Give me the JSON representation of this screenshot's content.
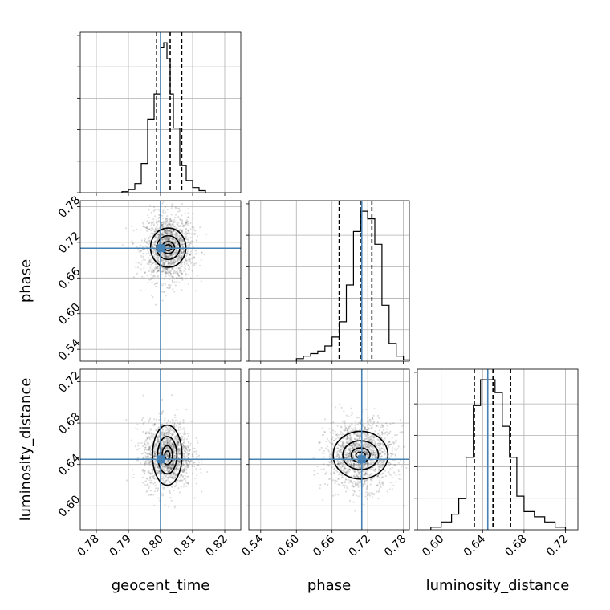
{
  "chart_data": {
    "type": "scatter",
    "subtype": "corner-plot",
    "grid": true,
    "parameters": [
      {
        "name": "geocent_time",
        "range": [
          0.775,
          0.825
        ],
        "ticks": [
          0.78,
          0.79,
          0.8,
          0.81,
          0.82
        ],
        "tick_labels": [
          "0.78",
          "0.79",
          "0.80",
          "0.81",
          "0.82"
        ],
        "truth": 0.8,
        "quantiles": [
          0.7988,
          0.803,
          0.8066
        ],
        "mean": 0.8024,
        "sd": 0.0028
      },
      {
        "name": "phase",
        "range": [
          0.52,
          0.79
        ],
        "ticks": [
          0.54,
          0.6,
          0.66,
          0.72,
          0.78
        ],
        "tick_labels": [
          "0.54",
          "0.60",
          "0.66",
          "0.72",
          "0.78"
        ],
        "truth": 0.71,
        "quantiles": [
          0.672,
          0.709,
          0.727
        ],
        "mean": 0.708,
        "sd": 0.021
      },
      {
        "name": "luminosity_distance",
        "range": [
          0.577,
          0.732
        ],
        "ticks": [
          0.6,
          0.64,
          0.68,
          0.72
        ],
        "tick_labels": [
          "0.60",
          "0.64",
          "0.68",
          "0.72"
        ],
        "truth": 0.645,
        "quantiles": [
          0.632,
          0.65,
          0.667
        ],
        "mean": 0.65,
        "sd": 0.012
      }
    ],
    "histograms": [
      {
        "parameter": "geocent_time",
        "bin_edges": [
          0.788,
          0.79,
          0.792,
          0.794,
          0.796,
          0.798,
          0.8,
          0.801,
          0.802,
          0.803,
          0.804,
          0.806,
          0.808,
          0.81,
          0.812,
          0.814
        ],
        "counts": [
          1,
          3,
          9,
          29,
          73,
          98,
          144,
          149,
          133,
          98,
          64,
          27,
          12,
          5,
          2
        ]
      },
      {
        "parameter": "phase",
        "bin_edges": [
          0.6,
          0.612,
          0.624,
          0.636,
          0.648,
          0.66,
          0.672,
          0.684,
          0.696,
          0.708,
          0.72,
          0.732,
          0.744,
          0.756,
          0.768,
          0.78,
          0.79
        ],
        "counts": [
          2,
          4,
          6,
          8,
          12,
          19,
          31,
          60,
          102,
          118,
          112,
          92,
          44,
          14,
          4,
          1
        ]
      },
      {
        "parameter": "luminosity_distance",
        "bin_edges": [
          0.59,
          0.6,
          0.61,
          0.617,
          0.624,
          0.631,
          0.638,
          0.645,
          0.652,
          0.659,
          0.666,
          0.673,
          0.68,
          0.69,
          0.7,
          0.71,
          0.72
        ],
        "counts": [
          1,
          3,
          6,
          12,
          28,
          48,
          58,
          58,
          53,
          40,
          28,
          13,
          7,
          5,
          3,
          1
        ]
      }
    ],
    "scatter_panels": [
      {
        "x": "geocent_time",
        "y": "phase",
        "center": [
          0.8024,
          0.711
        ],
        "contour_halfwidths": [
          [
            0.0011,
            0.005
          ],
          [
            0.002,
            0.01
          ],
          [
            0.0036,
            0.02
          ],
          [
            0.0055,
            0.033
          ]
        ]
      },
      {
        "x": "geocent_time",
        "y": "luminosity_distance",
        "center": [
          0.8021,
          0.649
        ],
        "contour_halfwidths": [
          [
            0.0008,
            0.004
          ],
          [
            0.0016,
            0.009
          ],
          [
            0.003,
            0.018
          ],
          [
            0.0046,
            0.029
          ]
        ]
      },
      {
        "x": "phase",
        "y": "luminosity_distance",
        "center": [
          0.708,
          0.649
        ],
        "contour_halfwidths": [
          [
            0.008,
            0.003
          ],
          [
            0.016,
            0.007
          ],
          [
            0.03,
            0.014
          ],
          [
            0.046,
            0.023
          ]
        ]
      }
    ]
  }
}
